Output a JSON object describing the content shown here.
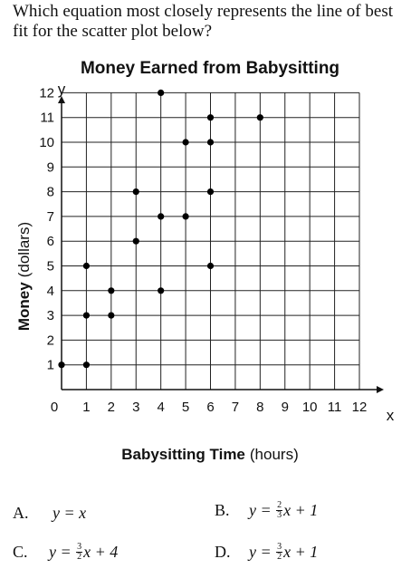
{
  "question": {
    "text": "Which equation most closely represents the line of best fit for the scatter plot below?"
  },
  "chart_data": {
    "type": "scatter",
    "title": "Money Earned from Babysitting",
    "xlabel_bold": "Babysitting Time",
    "xlabel_unit": "(hours)",
    "ylabel_bold": "Money",
    "ylabel_unit": "(dollars)",
    "x_axis_letter": "x",
    "y_axis_letter": "y",
    "xlim": [
      0,
      12
    ],
    "ylim": [
      0,
      12
    ],
    "grid": true,
    "x_ticks": [
      "0",
      "1",
      "2",
      "3",
      "4",
      "5",
      "6",
      "7",
      "8",
      "9",
      "10",
      "11",
      "12"
    ],
    "y_ticks": [
      "1",
      "2",
      "3",
      "4",
      "5",
      "6",
      "7",
      "8",
      "9",
      "10",
      "11",
      "12"
    ],
    "points": [
      {
        "x": 0,
        "y": 1
      },
      {
        "x": 1,
        "y": 1
      },
      {
        "x": 1,
        "y": 3
      },
      {
        "x": 1,
        "y": 5
      },
      {
        "x": 2,
        "y": 3
      },
      {
        "x": 2,
        "y": 4
      },
      {
        "x": 3,
        "y": 6
      },
      {
        "x": 3,
        "y": 8
      },
      {
        "x": 4,
        "y": 4
      },
      {
        "x": 4,
        "y": 7
      },
      {
        "x": 4,
        "y": 12
      },
      {
        "x": 5,
        "y": 7
      },
      {
        "x": 5,
        "y": 10
      },
      {
        "x": 6,
        "y": 5
      },
      {
        "x": 6,
        "y": 8
      },
      {
        "x": 6,
        "y": 10
      },
      {
        "x": 6,
        "y": 11
      },
      {
        "x": 8,
        "y": 11
      }
    ]
  },
  "choices": [
    {
      "letter": "A.",
      "lhs": "y = ",
      "num": "",
      "den": "",
      "rhs": "x"
    },
    {
      "letter": "B.",
      "lhs": "y = ",
      "num": "2",
      "den": "3",
      "rhs": "x + 1"
    },
    {
      "letter": "C.",
      "lhs": "y = ",
      "num": "3",
      "den": "2",
      "rhs": "x + 4"
    },
    {
      "letter": "D.",
      "lhs": "y = ",
      "num": "3",
      "den": "2",
      "rhs": "x + 1"
    }
  ]
}
